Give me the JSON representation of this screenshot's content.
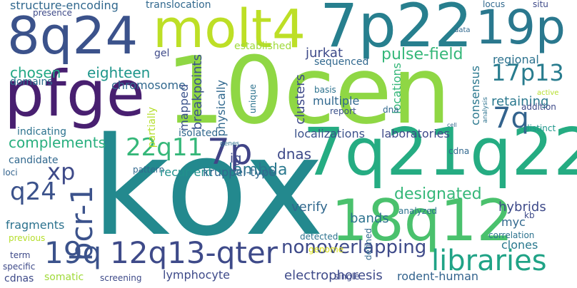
{
  "words": [
    {
      "text": "kox",
      "color": "#23898e",
      "vertical": false
    },
    {
      "text": "10cen",
      "color": "#8fd744",
      "vertical": false
    },
    {
      "text": "7q21q22",
      "color": "#25ac82",
      "vertical": false
    },
    {
      "text": "pfge",
      "color": "#481f70",
      "vertical": false
    },
    {
      "text": "7p22",
      "color": "#277f8e",
      "vertical": false
    },
    {
      "text": "molt4",
      "color": "#bddf26",
      "vertical": false
    },
    {
      "text": "8q24",
      "color": "#3b528b",
      "vertical": false
    },
    {
      "text": "18q12",
      "color": "#4ac16d",
      "vertical": false
    },
    {
      "text": "19p",
      "color": "#2a788e",
      "vertical": false
    },
    {
      "text": "12q13-qter",
      "color": "#3e4a89",
      "vertical": false
    },
    {
      "text": "libraries",
      "color": "#20a386",
      "vertical": false
    },
    {
      "text": "bcr-1",
      "color": "#3b528b",
      "vertical": true
    },
    {
      "text": "19q",
      "color": "#3b528b",
      "vertical": false
    },
    {
      "text": "7p",
      "color": "#414487",
      "vertical": false
    },
    {
      "text": "22q11",
      "color": "#35b779",
      "vertical": false
    },
    {
      "text": "7q",
      "color": "#33638d",
      "vertical": false
    },
    {
      "text": "17p13",
      "color": "#287c8e",
      "vertical": false
    },
    {
      "text": "xp",
      "color": "#3e4a89",
      "vertical": false
    },
    {
      "text": "q24",
      "color": "#3b528b",
      "vertical": false
    },
    {
      "text": "nonoverlapping",
      "color": "#3e4a89",
      "vertical": false
    },
    {
      "text": "designated",
      "color": "#35b779",
      "vertical": false
    },
    {
      "text": "lambda",
      "color": "#2a788e",
      "vertical": false
    },
    {
      "text": "eighteen",
      "color": "#1f968b",
      "vertical": false
    },
    {
      "text": "chosen",
      "color": "#22a884",
      "vertical": false
    },
    {
      "text": "complements",
      "color": "#29af7f",
      "vertical": false
    },
    {
      "text": "pulse-field",
      "color": "#35b779",
      "vertical": false
    },
    {
      "text": "dnas",
      "color": "#3e4a89",
      "vertical": false
    },
    {
      "text": "structure-encoding",
      "color": "#31688e",
      "vertical": false
    },
    {
      "text": "jurkat",
      "color": "#3e4a89",
      "vertical": false
    },
    {
      "text": "electrophoresis",
      "color": "#3e4a89",
      "vertical": false
    },
    {
      "text": "localizations",
      "color": "#3b528b",
      "vertical": false
    },
    {
      "text": "laboratories",
      "color": "#3e4a89",
      "vertical": false
    },
    {
      "text": "hybrids",
      "color": "#3e4a89",
      "vertical": false
    },
    {
      "text": "lymphocyte",
      "color": "#3e4a89",
      "vertical": false
    },
    {
      "text": "rodent-human",
      "color": "#33638d",
      "vertical": false
    },
    {
      "text": "clusters",
      "color": "#3e4a89",
      "vertical": true
    },
    {
      "text": "breakpoints",
      "color": "#3b528b",
      "vertical": true
    },
    {
      "text": "retaining",
      "color": "#2a788e",
      "vertical": false
    },
    {
      "text": "consensus",
      "color": "#2a788e",
      "vertical": true
    },
    {
      "text": "locations",
      "color": "#35b779",
      "vertical": true
    },
    {
      "text": "ig",
      "color": "#3e4a89",
      "vertical": false
    },
    {
      "text": "bands",
      "color": "#2c728e",
      "vertical": false
    },
    {
      "text": "verify",
      "color": "#31688e",
      "vertical": false
    },
    {
      "text": "myc",
      "color": "#31688e",
      "vertical": false
    },
    {
      "text": "clones",
      "color": "#2a788e",
      "vertical": false
    },
    {
      "text": "fragments",
      "color": "#2c728e",
      "vertical": false
    },
    {
      "text": "recurrent",
      "color": "#21918c",
      "vertical": false
    },
    {
      "text": "kruppel-type",
      "color": "#31688e",
      "vertical": false
    },
    {
      "text": "chromosome",
      "color": "#31688e",
      "vertical": false
    },
    {
      "text": "mapped",
      "color": "#3b528b",
      "vertical": true
    },
    {
      "text": "physically",
      "color": "#31688e",
      "vertical": true
    },
    {
      "text": "multiple",
      "color": "#31688e",
      "vertical": false
    },
    {
      "text": "regional",
      "color": "#2c728e",
      "vertical": false
    },
    {
      "text": "sequenced",
      "color": "#31688e",
      "vertical": false
    },
    {
      "text": "established",
      "color": "#9fda3a",
      "vertical": false
    },
    {
      "text": "translocation",
      "color": "#31688e",
      "vertical": false
    },
    {
      "text": "presence",
      "color": "#3e4a89",
      "vertical": false
    },
    {
      "text": "gel",
      "color": "#3e4a89",
      "vertical": false
    },
    {
      "text": "domains",
      "color": "#2c728e",
      "vertical": false
    },
    {
      "text": "indicating",
      "color": "#2c728e",
      "vertical": false
    },
    {
      "text": "candidate",
      "color": "#31688e",
      "vertical": false
    },
    {
      "text": "loci",
      "color": "#33638d",
      "vertical": false
    },
    {
      "text": "pattern",
      "color": "#31688e",
      "vertical": false
    },
    {
      "text": "isolated",
      "color": "#31688e",
      "vertical": false
    },
    {
      "text": "cdna",
      "color": "#31688e",
      "vertical": false
    },
    {
      "text": "distinct",
      "color": "#1f968b",
      "vertical": false
    },
    {
      "text": "locus",
      "color": "#31688e",
      "vertical": false
    },
    {
      "text": "situ",
      "color": "#3e4a89",
      "vertical": false
    },
    {
      "text": "basis",
      "color": "#2c728e",
      "vertical": false
    },
    {
      "text": "dna",
      "color": "#31688e",
      "vertical": false
    },
    {
      "text": "report",
      "color": "#3b528b",
      "vertical": false
    },
    {
      "text": "unique",
      "color": "#2c728e",
      "vertical": true
    },
    {
      "text": "partially",
      "color": "#b5de2b",
      "vertical": true
    },
    {
      "text": "genes",
      "color": "#2c728e",
      "vertical": false
    },
    {
      "text": "kb",
      "color": "#3e4a89",
      "vertical": false
    },
    {
      "text": "correlation",
      "color": "#2c728e",
      "vertical": false
    },
    {
      "text": "previous",
      "color": "#b5de2b",
      "vertical": false
    },
    {
      "text": "term",
      "color": "#3e4a89",
      "vertical": false
    },
    {
      "text": "detected",
      "color": "#2c728e",
      "vertical": false
    },
    {
      "text": "genome",
      "color": "#dde318",
      "vertical": false
    },
    {
      "text": "defined",
      "color": "#31688e",
      "vertical": true
    },
    {
      "text": "analyzed",
      "color": "#2c728e",
      "vertical": false
    },
    {
      "text": "specific",
      "color": "#3e4a89",
      "vertical": false
    },
    {
      "text": "cdnas",
      "color": "#3e4a89",
      "vertical": false
    },
    {
      "text": "somatic",
      "color": "#a0da39",
      "vertical": false
    },
    {
      "text": "screening",
      "color": "#3e4a89",
      "vertical": false
    },
    {
      "text": "single",
      "color": "#3e4a89",
      "vertical": false
    },
    {
      "text": "data",
      "color": "#31688e",
      "vertical": false
    },
    {
      "text": "active",
      "color": "#b5de2b",
      "vertical": false
    },
    {
      "text": "addition",
      "color": "#3e4a89",
      "vertical": false
    },
    {
      "text": "cell",
      "color": "#31688e",
      "vertical": false
    },
    {
      "text": "analysis",
      "color": "#2c728e",
      "vertical": true
    }
  ]
}
